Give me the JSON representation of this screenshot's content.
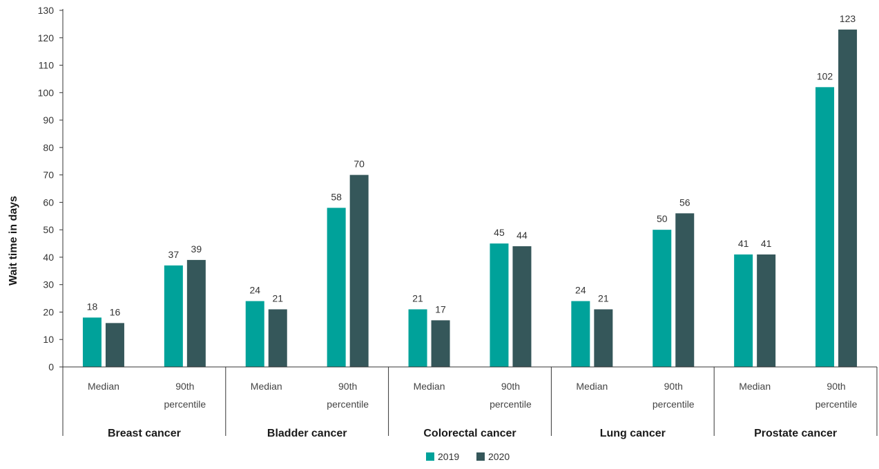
{
  "chart_data": {
    "type": "bar",
    "ylabel": "Wait time in days",
    "ylim": [
      0,
      130
    ],
    "yticks": [
      0,
      10,
      20,
      30,
      40,
      50,
      60,
      70,
      80,
      90,
      100,
      110,
      120,
      130
    ],
    "grid": false,
    "legend_position": "bottom",
    "groups": [
      {
        "label": "Breast cancer",
        "subcategories": [
          "Median",
          "90th percentile"
        ]
      },
      {
        "label": "Bladder cancer",
        "subcategories": [
          "Median",
          "90th percentile"
        ]
      },
      {
        "label": "Colorectal cancer",
        "subcategories": [
          "Median",
          "90th percentile"
        ]
      },
      {
        "label": "Lung cancer",
        "subcategories": [
          "Median",
          "90th percentile"
        ]
      },
      {
        "label": "Prostate cancer",
        "subcategories": [
          "Median",
          "90th percentile"
        ]
      }
    ],
    "subcategory_labels": {
      "Median": [
        "Median"
      ],
      "90th percentile": [
        "90th",
        "percentile"
      ]
    },
    "series": [
      {
        "name": "2019",
        "color": "#00a29a",
        "values": [
          18,
          37,
          24,
          58,
          21,
          45,
          24,
          50,
          41,
          102
        ]
      },
      {
        "name": "2020",
        "color": "#35575a",
        "values": [
          16,
          39,
          21,
          70,
          17,
          44,
          21,
          56,
          41,
          123
        ]
      }
    ],
    "value_labels": [
      [
        "18",
        "37",
        "24",
        "58",
        "21",
        "45",
        "24",
        "50",
        "41",
        "102"
      ],
      [
        "16",
        "39",
        "21",
        "70",
        "17",
        "44",
        "21",
        "56",
        "41",
        "123"
      ]
    ]
  }
}
